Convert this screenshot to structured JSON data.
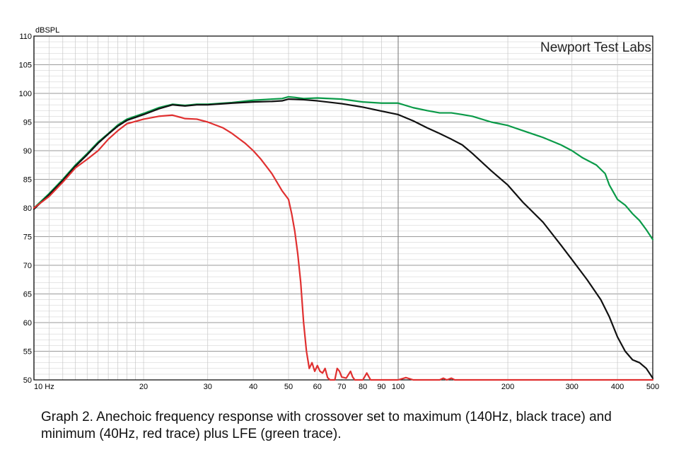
{
  "caption": "Graph 2. Anechoic frequency response with crossover set to maximum (140Hz, black trace) and minimum (40Hz, red trace) plus LFE (green trace).",
  "chart_data": {
    "type": "line",
    "watermark": "Newport Test Labs",
    "ylabel": "dBSPL",
    "xlabel": "",
    "x_scale": "log",
    "xlim": [
      10,
      500
    ],
    "ylim": [
      50,
      110
    ],
    "grid": true,
    "x_ticks": [
      {
        "value": 10,
        "label": "10  Hz"
      },
      {
        "value": 20,
        "label": "20"
      },
      {
        "value": 30,
        "label": "30"
      },
      {
        "value": 40,
        "label": "40"
      },
      {
        "value": 50,
        "label": "50"
      },
      {
        "value": 60,
        "label": "60"
      },
      {
        "value": 70,
        "label": "70"
      },
      {
        "value": 80,
        "label": "80"
      },
      {
        "value": 90,
        "label": "90"
      },
      {
        "value": 100,
        "label": "100"
      },
      {
        "value": 200,
        "label": "200"
      },
      {
        "value": 300,
        "label": "300"
      },
      {
        "value": 400,
        "label": "400"
      },
      {
        "value": 500,
        "label": "500"
      }
    ],
    "y_ticks": [
      50,
      55,
      60,
      65,
      70,
      75,
      80,
      85,
      90,
      95,
      100,
      105,
      110
    ],
    "series": [
      {
        "color": "#0a9a48",
        "points": [
          [
            10,
            80
          ],
          [
            11,
            82.5
          ],
          [
            12,
            85
          ],
          [
            13,
            87.5
          ],
          [
            14,
            89.5
          ],
          [
            15,
            91.5
          ],
          [
            16,
            93
          ],
          [
            17,
            94.5
          ],
          [
            18,
            95.5
          ],
          [
            20,
            96.5
          ],
          [
            22,
            97.5
          ],
          [
            24,
            98.1
          ],
          [
            26,
            97.9
          ],
          [
            28,
            98.1
          ],
          [
            30,
            98.1
          ],
          [
            35,
            98.4
          ],
          [
            40,
            98.8
          ],
          [
            45,
            99
          ],
          [
            48,
            99.1
          ],
          [
            50,
            99.4
          ],
          [
            52,
            99.3
          ],
          [
            55,
            99.1
          ],
          [
            60,
            99.2
          ],
          [
            70,
            99
          ],
          [
            80,
            98.5
          ],
          [
            90,
            98.3
          ],
          [
            100,
            98.3
          ],
          [
            110,
            97.5
          ],
          [
            120,
            97
          ],
          [
            130,
            96.6
          ],
          [
            140,
            96.6
          ],
          [
            150,
            96.3
          ],
          [
            160,
            96
          ],
          [
            180,
            95
          ],
          [
            200,
            94.4
          ],
          [
            220,
            93.5
          ],
          [
            250,
            92.3
          ],
          [
            280,
            91
          ],
          [
            300,
            90
          ],
          [
            320,
            88.8
          ],
          [
            350,
            87.5
          ],
          [
            370,
            86
          ],
          [
            380,
            84
          ],
          [
            400,
            81.5
          ],
          [
            420,
            80.5
          ],
          [
            440,
            79
          ],
          [
            460,
            77.8
          ],
          [
            480,
            76.2
          ],
          [
            500,
            74.5
          ]
        ]
      },
      {
        "color": "#111111",
        "points": [
          [
            10,
            79.8
          ],
          [
            11,
            82.3
          ],
          [
            12,
            84.8
          ],
          [
            13,
            87.3
          ],
          [
            14,
            89.3
          ],
          [
            15,
            91.3
          ],
          [
            16,
            92.9
          ],
          [
            17,
            94.3
          ],
          [
            18,
            95.3
          ],
          [
            20,
            96.3
          ],
          [
            22,
            97.3
          ],
          [
            24,
            98
          ],
          [
            26,
            97.8
          ],
          [
            28,
            98
          ],
          [
            30,
            98
          ],
          [
            35,
            98.3
          ],
          [
            40,
            98.5
          ],
          [
            45,
            98.6
          ],
          [
            48,
            98.7
          ],
          [
            50,
            99
          ],
          [
            55,
            98.9
          ],
          [
            60,
            98.7
          ],
          [
            70,
            98.2
          ],
          [
            80,
            97.6
          ],
          [
            90,
            96.9
          ],
          [
            100,
            96.3
          ],
          [
            110,
            95.2
          ],
          [
            120,
            94
          ],
          [
            130,
            93
          ],
          [
            140,
            92
          ],
          [
            150,
            91
          ],
          [
            160,
            89.5
          ],
          [
            180,
            86.5
          ],
          [
            200,
            84
          ],
          [
            220,
            81
          ],
          [
            250,
            77.5
          ],
          [
            280,
            73.5
          ],
          [
            300,
            71
          ],
          [
            330,
            67.5
          ],
          [
            360,
            64
          ],
          [
            380,
            61
          ],
          [
            400,
            57.5
          ],
          [
            420,
            55
          ],
          [
            440,
            53.5
          ],
          [
            460,
            53
          ],
          [
            480,
            52
          ],
          [
            500,
            50.3
          ]
        ]
      },
      {
        "color": "#e03030",
        "points": [
          [
            10,
            80
          ],
          [
            11,
            82
          ],
          [
            12,
            84.5
          ],
          [
            13,
            87
          ],
          [
            14,
            88.5
          ],
          [
            15,
            90
          ],
          [
            16,
            92
          ],
          [
            17,
            93.5
          ],
          [
            18,
            94.7
          ],
          [
            20,
            95.5
          ],
          [
            22,
            96
          ],
          [
            24,
            96.2
          ],
          [
            26,
            95.6
          ],
          [
            28,
            95.5
          ],
          [
            30,
            95
          ],
          [
            33,
            94
          ],
          [
            35,
            93
          ],
          [
            38,
            91.3
          ],
          [
            40,
            90
          ],
          [
            42,
            88.5
          ],
          [
            45,
            86
          ],
          [
            48,
            83
          ],
          [
            50,
            81.5
          ],
          [
            51,
            79
          ],
          [
            52,
            76
          ],
          [
            53,
            72
          ],
          [
            54,
            67
          ],
          [
            55,
            60
          ],
          [
            56,
            55
          ],
          [
            57,
            52
          ],
          [
            58,
            53
          ],
          [
            59,
            51.5
          ],
          [
            60,
            52.5
          ],
          [
            61,
            51.5
          ],
          [
            62,
            51.2
          ],
          [
            63,
            52
          ],
          [
            64,
            50.4
          ],
          [
            65,
            50
          ],
          [
            67,
            50
          ],
          [
            68,
            52
          ],
          [
            69,
            51.5
          ],
          [
            70,
            50.5
          ],
          [
            72,
            50.3
          ],
          [
            74,
            51.5
          ],
          [
            75,
            50.5
          ],
          [
            76,
            50
          ],
          [
            80,
            50
          ],
          [
            82,
            51.2
          ],
          [
            84,
            50
          ],
          [
            100,
            50
          ],
          [
            105,
            50.4
          ],
          [
            110,
            50
          ],
          [
            130,
            50
          ],
          [
            133,
            50.3
          ],
          [
            136,
            50
          ],
          [
            140,
            50.3
          ],
          [
            143,
            50
          ],
          [
            500,
            50
          ]
        ]
      }
    ]
  }
}
